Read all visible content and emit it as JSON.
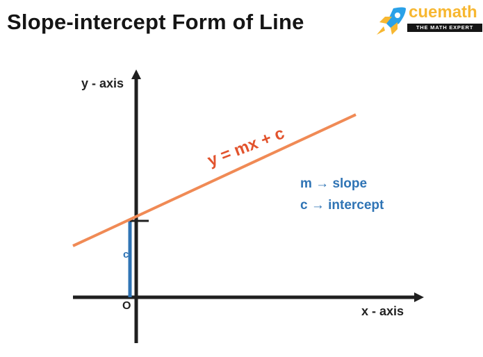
{
  "title": "Slope-intercept Form of Line",
  "brand": {
    "name": "cuemath",
    "tagline": "THE MATH EXPERT"
  },
  "colors": {
    "line": "#f08a55",
    "equation": "#e2532d",
    "legend": "#2f74b5",
    "axis": "#1f1f1f",
    "brand_accent": "#f7b731",
    "rocket": "#2aa1e8"
  },
  "axes": {
    "x_label": "x - axis",
    "y_label": "y - axis",
    "origin_label": "O"
  },
  "equation": "y = mx + c",
  "intercept_label": "c",
  "legend": {
    "line1": "m → slope",
    "line2": "c → intercept"
  }
}
